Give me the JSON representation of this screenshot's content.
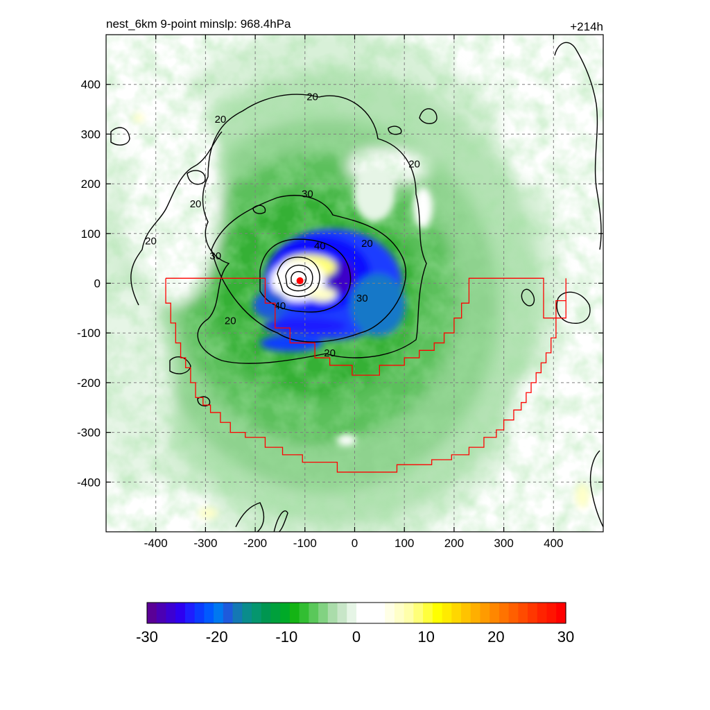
{
  "header": {
    "title": "nest_6km  9-point minslp: 968.4hPa",
    "forecast_hour": "+214h"
  },
  "chart_data": {
    "type": "heatmap",
    "x_range": [
      -500,
      500
    ],
    "y_range": [
      -500,
      500
    ],
    "x_ticks": [
      -400,
      -300,
      -200,
      -100,
      0,
      100,
      200,
      300,
      400
    ],
    "y_ticks": [
      400,
      300,
      200,
      100,
      0,
      -100,
      -200,
      -300,
      -400
    ],
    "grid": true,
    "storm_center": [
      -110,
      5
    ],
    "contour_labels": [
      {
        "text": "20",
        "x": -85,
        "y": 375
      },
      {
        "text": "20",
        "x": -270,
        "y": 330
      },
      {
        "text": "20",
        "x": 120,
        "y": 240
      },
      {
        "text": "20",
        "x": -320,
        "y": 160
      },
      {
        "text": "20",
        "x": -410,
        "y": 85
      },
      {
        "text": "30",
        "x": -95,
        "y": 180
      },
      {
        "text": "30",
        "x": -280,
        "y": 55
      },
      {
        "text": "40",
        "x": -70,
        "y": 75
      },
      {
        "text": "40",
        "x": -150,
        "y": -45
      },
      {
        "text": "20",
        "x": 25,
        "y": 80
      },
      {
        "text": "30",
        "x": 15,
        "y": -30
      },
      {
        "text": "20",
        "x": -250,
        "y": -75
      },
      {
        "text": "20",
        "x": -50,
        "y": -140
      }
    ],
    "red_region": [
      [
        -380,
        10
      ],
      [
        -180,
        10
      ],
      [
        -180,
        -40
      ],
      [
        -160,
        -40
      ],
      [
        -160,
        -90
      ],
      [
        -130,
        -90
      ],
      [
        -130,
        -120
      ],
      [
        -80,
        -120
      ],
      [
        -80,
        -150
      ],
      [
        -50,
        -150
      ],
      [
        -50,
        -165
      ],
      [
        -5,
        -165
      ],
      [
        -5,
        -185
      ],
      [
        50,
        -185
      ],
      [
        50,
        -165
      ],
      [
        100,
        -165
      ],
      [
        100,
        -150
      ],
      [
        130,
        -150
      ],
      [
        130,
        -135
      ],
      [
        160,
        -135
      ],
      [
        160,
        -120
      ],
      [
        180,
        -120
      ],
      [
        180,
        -100
      ],
      [
        200,
        -100
      ],
      [
        200,
        -70
      ],
      [
        215,
        -70
      ],
      [
        215,
        -40
      ],
      [
        230,
        -40
      ],
      [
        230,
        10
      ],
      [
        380,
        10
      ],
      [
        380,
        -70
      ],
      [
        425,
        -70
      ],
      [
        425,
        10
      ],
      [
        425,
        -35
      ],
      [
        405,
        -35
      ],
      [
        405,
        -110
      ],
      [
        395,
        -110
      ],
      [
        395,
        -140
      ],
      [
        385,
        -140
      ],
      [
        385,
        -160
      ],
      [
        375,
        -160
      ],
      [
        375,
        -180
      ],
      [
        365,
        -180
      ],
      [
        365,
        -200
      ],
      [
        355,
        -200
      ],
      [
        355,
        -220
      ],
      [
        345,
        -220
      ],
      [
        345,
        -240
      ],
      [
        335,
        -240
      ],
      [
        335,
        -255
      ],
      [
        320,
        -255
      ],
      [
        320,
        -275
      ],
      [
        300,
        -275
      ],
      [
        300,
        -295
      ],
      [
        285,
        -295
      ],
      [
        285,
        -310
      ],
      [
        260,
        -310
      ],
      [
        260,
        -330
      ],
      [
        230,
        -330
      ],
      [
        230,
        -345
      ],
      [
        195,
        -345
      ],
      [
        195,
        -355
      ],
      [
        155,
        -355
      ],
      [
        155,
        -365
      ],
      [
        85,
        -365
      ],
      [
        85,
        -380
      ],
      [
        -35,
        -380
      ],
      [
        -35,
        -360
      ],
      [
        -105,
        -360
      ],
      [
        -105,
        -345
      ],
      [
        -145,
        -345
      ],
      [
        -145,
        -330
      ],
      [
        -180,
        -330
      ],
      [
        -180,
        -310
      ],
      [
        -220,
        -310
      ],
      [
        -220,
        -300
      ],
      [
        -250,
        -300
      ],
      [
        -250,
        -280
      ],
      [
        -270,
        -280
      ],
      [
        -270,
        -260
      ],
      [
        -290,
        -260
      ],
      [
        -290,
        -245
      ],
      [
        -305,
        -245
      ],
      [
        -305,
        -230
      ],
      [
        -320,
        -230
      ],
      [
        -320,
        -200
      ],
      [
        -330,
        -200
      ],
      [
        -330,
        -170
      ],
      [
        -340,
        -170
      ],
      [
        -340,
        -150
      ],
      [
        -350,
        -150
      ],
      [
        -350,
        -120
      ],
      [
        -360,
        -120
      ],
      [
        -360,
        -80
      ],
      [
        -370,
        -80
      ],
      [
        -370,
        -40
      ],
      [
        -380,
        -40
      ],
      [
        -380,
        10
      ]
    ]
  },
  "colorbar": {
    "ticks": [
      "-30",
      "-20",
      "-10",
      "0",
      "10",
      "20",
      "30"
    ],
    "colors": [
      "#5a0096",
      "#4b00b4",
      "#3c00d2",
      "#2d00f0",
      "#1e1eff",
      "#0a3cff",
      "#005aff",
      "#0078f0",
      "#1e5adc",
      "#1478b4",
      "#0a8c8c",
      "#05966e",
      "#009650",
      "#00a03c",
      "#00aa28",
      "#14b414",
      "#32be32",
      "#5ac85a",
      "#82d282",
      "#aadcaa",
      "#c8e6c8",
      "#e6f5e6",
      "#ffffff",
      "#ffffff",
      "#ffffff",
      "#ffffe6",
      "#ffffc8",
      "#ffffaa",
      "#ffff78",
      "#ffff3c",
      "#ffff00",
      "#ffeb00",
      "#ffd700",
      "#ffc300",
      "#ffaf00",
      "#ff9b00",
      "#ff8700",
      "#ff7300",
      "#ff5f00",
      "#ff4b00",
      "#ff3700",
      "#ff2300",
      "#ff1400",
      "#ff0000"
    ]
  }
}
